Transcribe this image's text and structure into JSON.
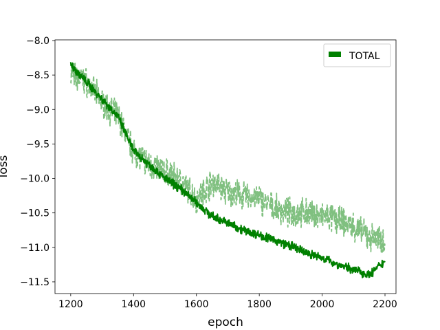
{
  "chart_data": {
    "type": "line",
    "xlabel": "epoch",
    "ylabel": "loss",
    "xlim": [
      1150,
      2235
    ],
    "ylim": [
      -11.67,
      -7.99
    ],
    "x_ticks": [
      1200,
      1400,
      1600,
      1800,
      2000,
      2200
    ],
    "y_ticks": [
      -8.0,
      -8.5,
      -9.0,
      -9.5,
      -10.0,
      -10.5,
      -11.0,
      -11.5
    ],
    "x_tick_labels": [
      "1200",
      "1400",
      "1600",
      "1800",
      "2000",
      "2200"
    ],
    "y_tick_labels": [
      "−8.0",
      "−8.5",
      "−9.0",
      "−9.5",
      "−10.0",
      "−10.5",
      "−11.0",
      "−11.5"
    ],
    "grid": false,
    "legend": {
      "placement": "top-right",
      "entries": [
        "TOTAL"
      ]
    },
    "series": [
      {
        "name": "TOTAL",
        "style": "solid",
        "color": "#008000",
        "x": [
          1200,
          1250,
          1300,
          1350,
          1400,
          1450,
          1500,
          1550,
          1600,
          1650,
          1700,
          1750,
          1800,
          1850,
          1900,
          1950,
          2000,
          2050,
          2100,
          2150,
          2200
        ],
        "y": [
          -8.35,
          -8.6,
          -8.85,
          -9.1,
          -9.6,
          -9.8,
          -10.0,
          -10.15,
          -10.35,
          -10.55,
          -10.65,
          -10.75,
          -10.82,
          -10.9,
          -10.98,
          -11.08,
          -11.15,
          -11.25,
          -11.32,
          -11.4,
          -11.2
        ]
      },
      {
        "name": "",
        "style": "dashed",
        "color": "#80c080",
        "x": [
          1200,
          1250,
          1300,
          1350,
          1400,
          1450,
          1500,
          1550,
          1600,
          1650,
          1700,
          1750,
          1800,
          1850,
          1900,
          1950,
          2000,
          2050,
          2100,
          2150,
          2200
        ],
        "y": [
          -8.5,
          -8.6,
          -8.9,
          -9.1,
          -9.6,
          -9.8,
          -9.9,
          -10.05,
          -10.3,
          -10.05,
          -10.2,
          -10.25,
          -10.3,
          -10.45,
          -10.5,
          -10.5,
          -10.55,
          -10.6,
          -10.7,
          -10.85,
          -10.9
        ]
      }
    ]
  }
}
